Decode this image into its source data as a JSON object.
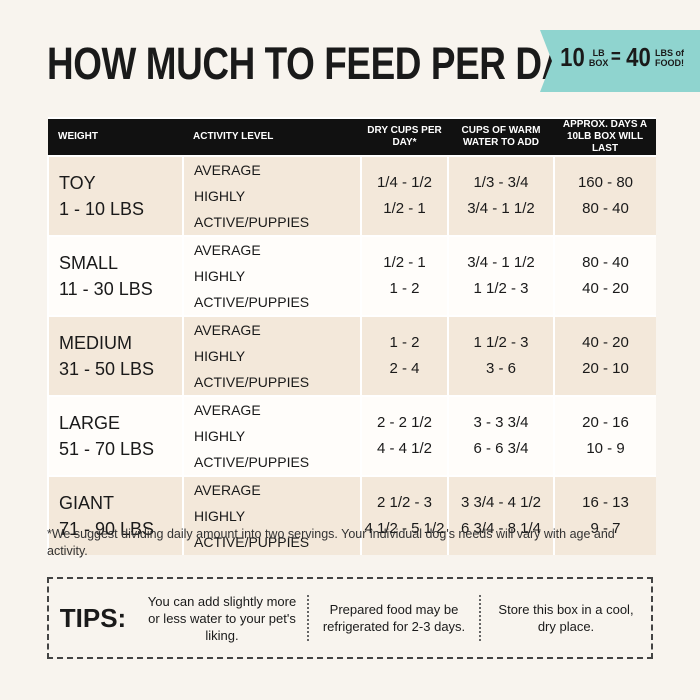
{
  "header": {
    "title": "HOW MUCH TO FEED PER DAY",
    "badge": {
      "left_number": "10",
      "left_unit": [
        "LB",
        "BOX"
      ],
      "equals": "=",
      "right_number": "40",
      "right_unit": [
        "LBS of",
        "FOOD!"
      ]
    }
  },
  "table": {
    "columns": [
      "WEIGHT",
      "ACTIVITY LEVEL",
      "DRY CUPS PER DAY*",
      "CUPS OF WARM WATER TO ADD",
      "APPROX. DAYS A 10LB BOX WILL LAST"
    ],
    "rows": [
      {
        "size": "TOY",
        "range": "1 - 10 LBS",
        "levels": [
          "AVERAGE",
          "HIGHLY ACTIVE/PUPPIES"
        ],
        "dry": [
          "1/4 - 1/2",
          "1/2 - 1"
        ],
        "water": [
          "1/3 - 3/4",
          "3/4 - 1 1/2"
        ],
        "days": [
          "160 - 80",
          "80 - 40"
        ]
      },
      {
        "size": "SMALL",
        "range": "11 - 30 LBS",
        "levels": [
          "AVERAGE",
          "HIGHLY ACTIVE/PUPPIES"
        ],
        "dry": [
          "1/2 - 1",
          "1 - 2"
        ],
        "water": [
          "3/4 - 1 1/2",
          "1 1/2 - 3"
        ],
        "days": [
          "80 - 40",
          "40 - 20"
        ]
      },
      {
        "size": "MEDIUM",
        "range": "31 - 50 LBS",
        "levels": [
          "AVERAGE",
          "HIGHLY ACTIVE/PUPPIES"
        ],
        "dry": [
          "1 - 2",
          "2 - 4"
        ],
        "water": [
          "1 1/2 - 3",
          "3 - 6"
        ],
        "days": [
          "40 - 20",
          "20 - 10"
        ]
      },
      {
        "size": "LARGE",
        "range": "51 - 70 LBS",
        "levels": [
          "AVERAGE",
          "HIGHLY ACTIVE/PUPPIES"
        ],
        "dry": [
          "2 - 2 1/2",
          "4 - 4 1/2"
        ],
        "water": [
          "3 - 3 3/4",
          "6 - 6 3/4"
        ],
        "days": [
          "20 - 16",
          "10 - 9"
        ]
      },
      {
        "size": "GIANT",
        "range": "71 - 90 LBS",
        "levels": [
          "AVERAGE",
          "HIGHLY ACTIVE/PUPPIES"
        ],
        "dry": [
          "2 1/2 - 3",
          "4 1/2 - 5 1/2"
        ],
        "water": [
          "3 3/4 - 4 1/2",
          "6 3/4 - 8 1/4"
        ],
        "days": [
          "16 - 13",
          "9 - 7"
        ]
      }
    ]
  },
  "footnote": "*We suggest dividing daily amount into two servings. Your individual dog's needs will vary with age and activity.",
  "tips": {
    "label": "TIPS:",
    "items": [
      "You can add slightly more or less water to your pet's liking.",
      "Prepared food may be refrigerated for 2-3 days.",
      "Store this box in a cool, dry place."
    ]
  }
}
